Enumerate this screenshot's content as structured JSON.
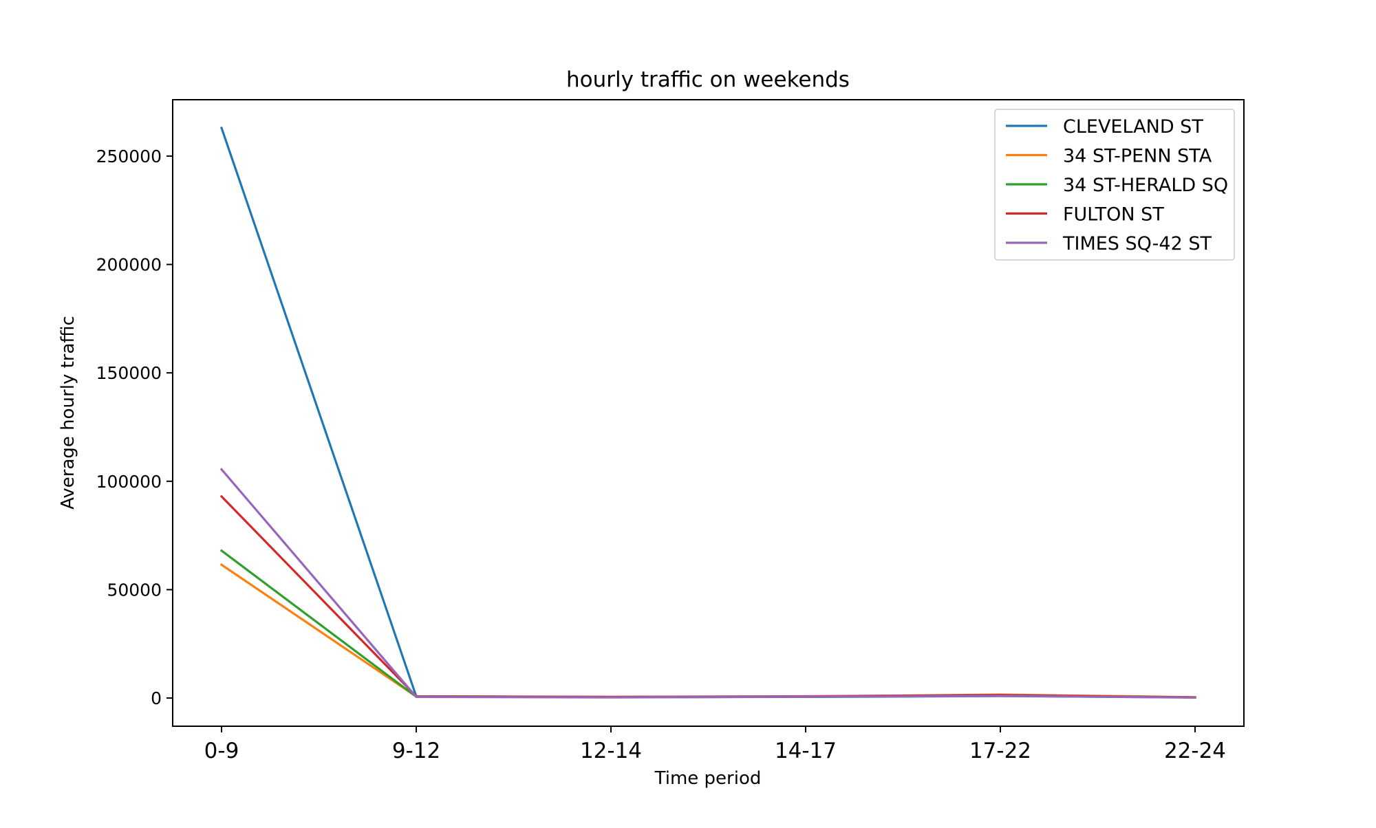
{
  "chart_data": {
    "type": "line",
    "title": "hourly traffic on weekends",
    "xlabel": "Time period",
    "ylabel": "Average hourly traffic",
    "categories": [
      "0-9",
      "9-12",
      "12-14",
      "14-17",
      "17-22",
      "22-24"
    ],
    "ylim": [
      -13000,
      276000
    ],
    "yticks": [
      0,
      50000,
      100000,
      150000,
      200000,
      250000
    ],
    "ytick_labels": [
      "0",
      "50000",
      "100000",
      "150000",
      "200000",
      "250000"
    ],
    "grid": false,
    "legend_position": "top-right",
    "series": [
      {
        "name": "CLEVELAND ST",
        "color": "#1f77b4",
        "values": [
          263000,
          800,
          400,
          500,
          900,
          300
        ]
      },
      {
        "name": "34 ST-PENN STA",
        "color": "#ff7f0e",
        "values": [
          61500,
          700,
          500,
          700,
          1600,
          400
        ]
      },
      {
        "name": "34 ST-HERALD SQ",
        "color": "#2ca02c",
        "values": [
          68000,
          600,
          400,
          600,
          1200,
          300
        ]
      },
      {
        "name": "FULTON ST",
        "color": "#d62728",
        "values": [
          93000,
          800,
          500,
          800,
          1400,
          300
        ]
      },
      {
        "name": "TIMES SQ-42 ST",
        "color": "#9467bd",
        "values": [
          105500,
          500,
          300,
          600,
          1000,
          200
        ]
      }
    ]
  }
}
